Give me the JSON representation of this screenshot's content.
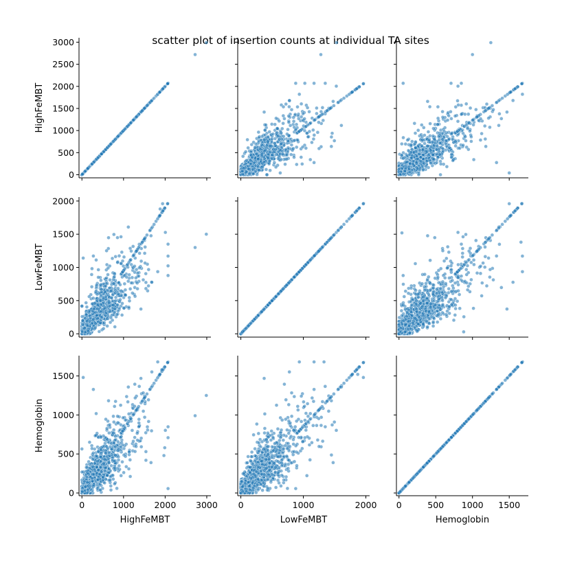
{
  "chart_data": {
    "type": "scatter",
    "title": "scatter plot of insertion counts at individual TA sites",
    "variables": [
      "HighFeMBT",
      "LowFeMBT",
      "Hemoglobin"
    ],
    "marker_color": "#1f77b4",
    "marker_alpha": 0.55,
    "grid": false,
    "legend": "none",
    "axes": {
      "HighFeMBT": {
        "range": [
          -70,
          3100
        ],
        "ticks": [
          0,
          500,
          1000,
          1500,
          2000,
          2500,
          3000
        ],
        "x_ticks": [
          0,
          1000,
          2000,
          3000
        ]
      },
      "LowFeMBT": {
        "range": [
          -50,
          2060
        ],
        "ticks": [
          0,
          500,
          1000,
          1500,
          2000
        ],
        "x_ticks": [
          0,
          1000,
          2000
        ]
      },
      "Hemoglobin": {
        "range": [
          -35,
          1760
        ],
        "ticks": [
          0,
          500,
          1000,
          1500
        ],
        "x_ticks": [
          0,
          500,
          1000,
          1500
        ]
      }
    },
    "diagonal_max": {
      "HighFeMBT": 2070,
      "LowFeMBT": 1970,
      "Hemoglobin": 1680
    },
    "bulk_samples": 1400,
    "outliers": [
      {
        "x": "HighFeMBT",
        "y": "HighFeMBT",
        "points": [
          [
            2720,
            2720
          ],
          [
            2990,
            2990
          ]
        ]
      },
      {
        "x": "LowFeMBT",
        "y": "HighFeMBT",
        "points": [
          [
            1280,
            2720
          ],
          [
            1530,
            2990
          ],
          [
            630,
            40
          ]
        ]
      },
      {
        "x": "Hemoglobin",
        "y": "HighFeMBT",
        "points": [
          [
            1000,
            2720
          ],
          [
            1250,
            2990
          ],
          [
            1500,
            40
          ]
        ]
      },
      {
        "x": "HighFeMBT",
        "y": "LowFeMBT",
        "points": [
          [
            2720,
            1300
          ],
          [
            2990,
            1500
          ],
          [
            30,
            1140
          ],
          [
            1940,
            1960
          ],
          [
            1880,
            1880
          ]
        ]
      },
      {
        "x": "Hemoglobin",
        "y": "LowFeMBT",
        "points": [
          [
            1500,
            1960
          ],
          [
            1660,
            1380
          ],
          [
            40,
            1520
          ],
          [
            880,
            30
          ]
        ]
      },
      {
        "x": "HighFeMBT",
        "y": "Hemoglobin",
        "points": [
          [
            2720,
            990
          ],
          [
            2990,
            1250
          ],
          [
            30,
            1480
          ],
          [
            1920,
            1580
          ],
          [
            1970,
            480
          ],
          [
            1990,
            580
          ]
        ]
      },
      {
        "x": "LowFeMBT",
        "y": "Hemoglobin",
        "points": [
          [
            1330,
            1680
          ],
          [
            1960,
            1480
          ],
          [
            1870,
            1520
          ]
        ]
      }
    ]
  }
}
